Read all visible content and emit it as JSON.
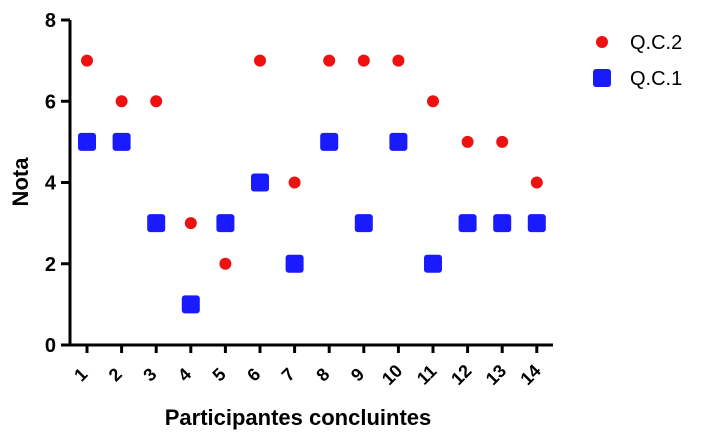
{
  "chart_data": {
    "type": "scatter",
    "xlabel": "Participantes concluintes",
    "ylabel": "Nota",
    "ylim": [
      0,
      8
    ],
    "yticks": [
      "0",
      "2",
      "4",
      "6",
      "8"
    ],
    "categories": [
      "1",
      "2",
      "3",
      "4",
      "5",
      "6",
      "7",
      "8",
      "9",
      "10",
      "11",
      "12",
      "13",
      "14"
    ],
    "legend_position": "top-right",
    "grid": false,
    "series": [
      {
        "name": "Q.C.2",
        "marker": "circle",
        "color": "#ee1111",
        "values": [
          7,
          6,
          6,
          3,
          2,
          7,
          4,
          7,
          7,
          7,
          6,
          5,
          5,
          4
        ]
      },
      {
        "name": "Q.C.1",
        "marker": "square",
        "color": "#1a1aff",
        "values": [
          5,
          5,
          3,
          1,
          3,
          4,
          2,
          5,
          3,
          5,
          2,
          3,
          3,
          3
        ]
      }
    ]
  }
}
